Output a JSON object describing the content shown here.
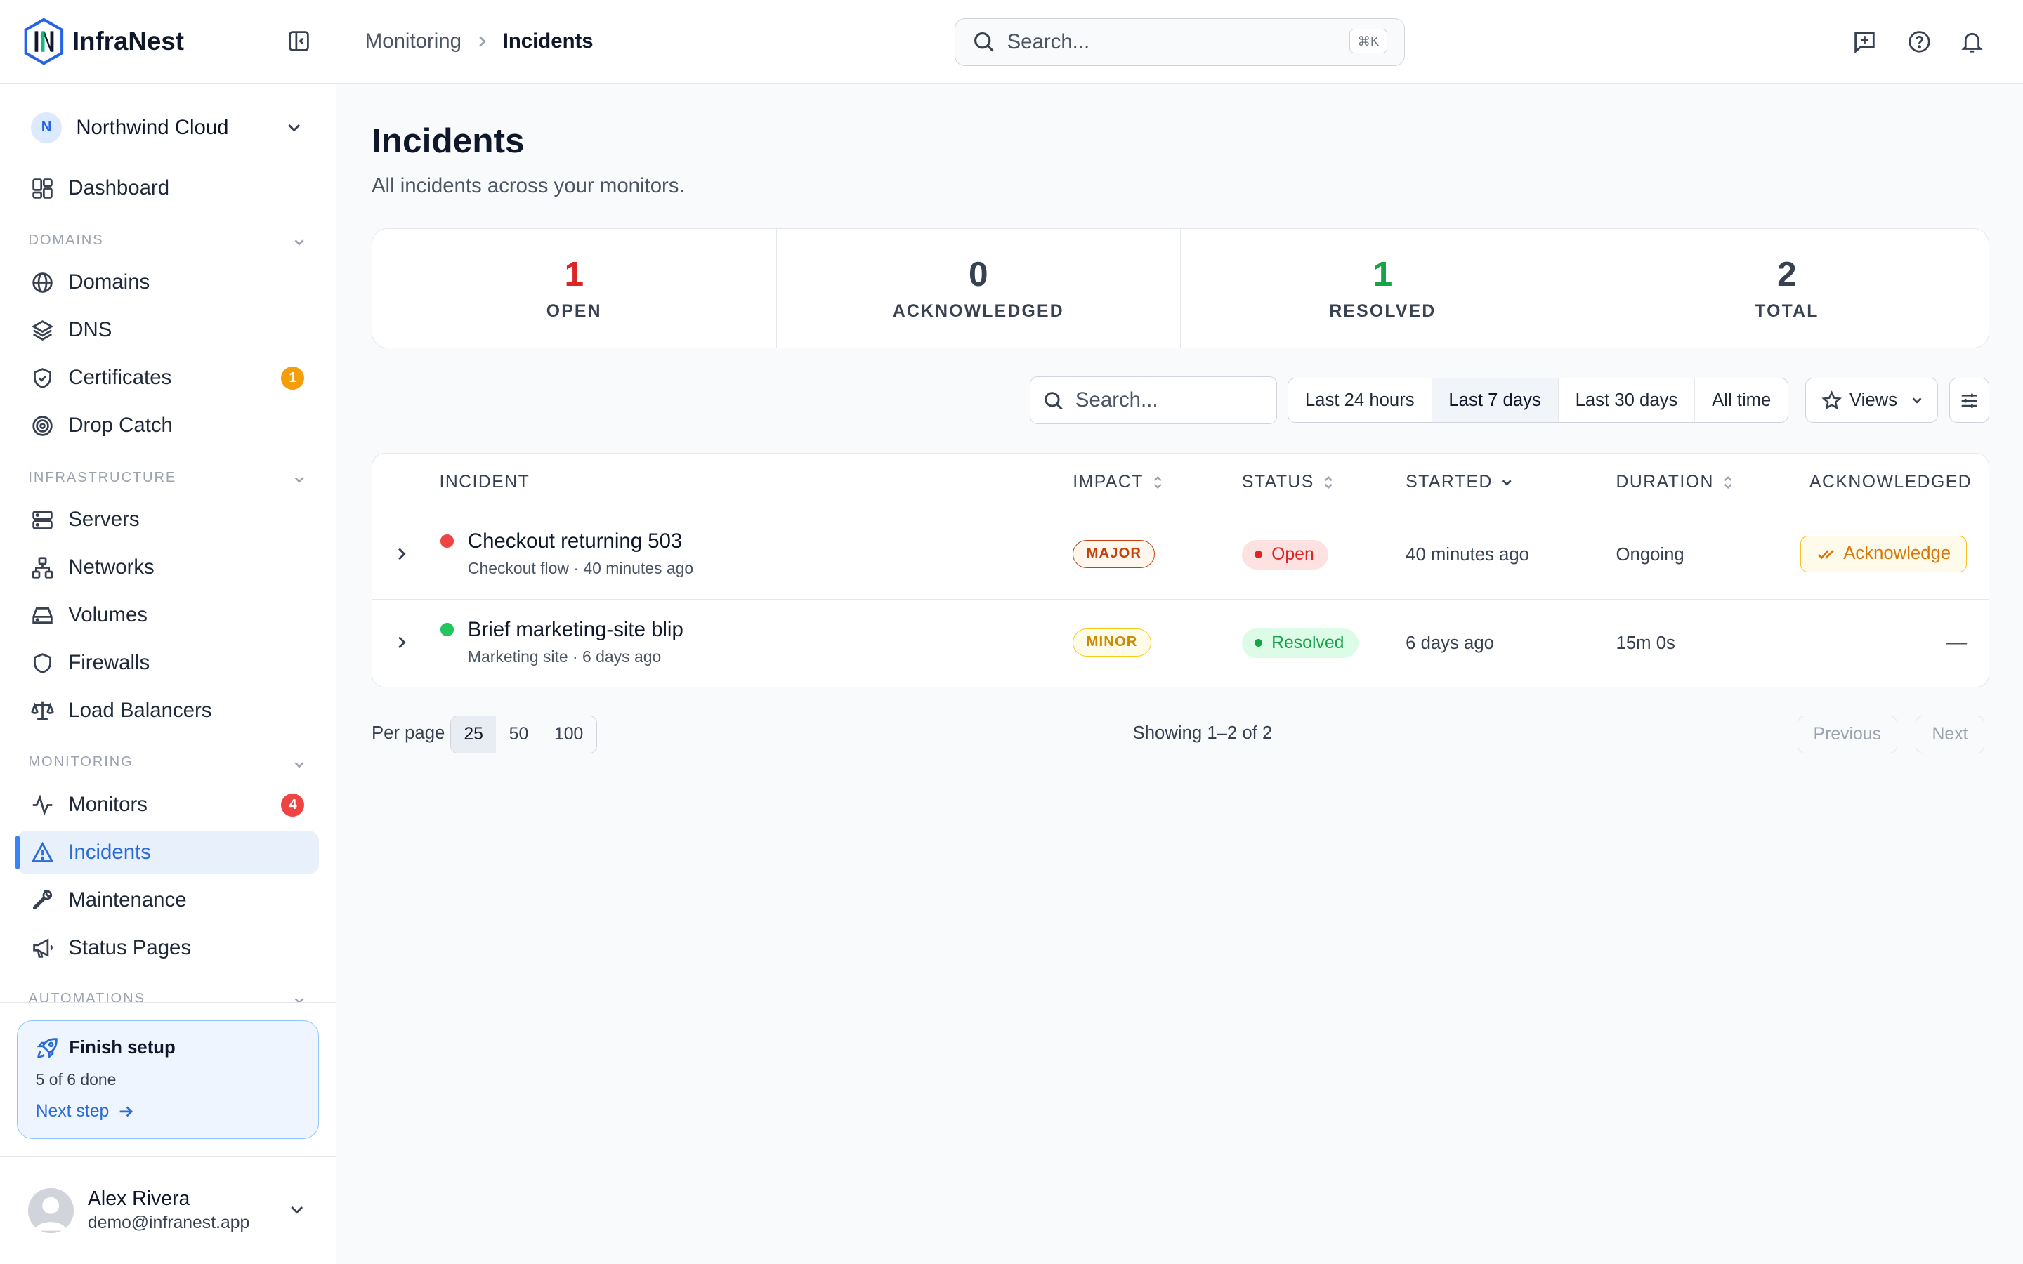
{
  "brand": {
    "name": "InfraNest"
  },
  "org": {
    "initial": "N",
    "name": "Northwind Cloud"
  },
  "nav": {
    "dashboard": "Dashboard",
    "sections": {
      "domains": "DOMAINS",
      "infrastructure": "INFRASTRUCTURE",
      "monitoring": "MONITORING",
      "automations": "AUTOMATIONS"
    },
    "domains": "Domains",
    "dns": "DNS",
    "certificates": "Certificates",
    "certificates_badge": "1",
    "drop_catch": "Drop Catch",
    "servers": "Servers",
    "networks": "Networks",
    "volumes": "Volumes",
    "firewalls": "Firewalls",
    "load_balancers": "Load Balancers",
    "monitors": "Monitors",
    "monitors_badge": "4",
    "incidents": "Incidents",
    "maintenance": "Maintenance",
    "status_pages": "Status Pages"
  },
  "setup": {
    "title": "Finish setup",
    "progress": "5 of 6 done",
    "link": "Next step"
  },
  "user": {
    "name": "Alex Rivera",
    "email": "demo@infranest.app"
  },
  "header": {
    "breadcrumb": [
      "Monitoring",
      "Incidents"
    ],
    "search_placeholder": "Search...",
    "shortcut": "⌘K"
  },
  "page": {
    "title": "Incidents",
    "subtitle": "All incidents across your monitors."
  },
  "stats": [
    {
      "value": "1",
      "label": "OPEN",
      "color": "#dc2626"
    },
    {
      "value": "0",
      "label": "ACKNOWLEDGED",
      "color": "#374151"
    },
    {
      "value": "1",
      "label": "RESOLVED",
      "color": "#16a34a"
    },
    {
      "value": "2",
      "label": "TOTAL",
      "color": "#374151"
    }
  ],
  "filters": {
    "search_placeholder": "Search...",
    "ranges": [
      "Last 24 hours",
      "Last 7 days",
      "Last 30 days",
      "All time"
    ],
    "selected_range": "Last 7 days",
    "views_label": "Views"
  },
  "table": {
    "columns": {
      "incident": "INCIDENT",
      "impact": "IMPACT",
      "status": "STATUS",
      "started": "STARTED",
      "duration": "DURATION",
      "acknowledged": "ACKNOWLEDGED"
    },
    "rows": [
      {
        "title": "Checkout returning 503",
        "meta": "Checkout flow · 40 minutes ago",
        "impact": "MAJOR",
        "status": "Open",
        "started": "40 minutes ago",
        "duration": "Ongoing",
        "ack": "Acknowledge",
        "dot_color": "#ef4444"
      },
      {
        "title": "Brief marketing-site blip",
        "meta": "Marketing site · 6 days ago",
        "impact": "MINOR",
        "status": "Resolved",
        "started": "6 days ago",
        "duration": "15m 0s",
        "ack": "—",
        "dot_color": "#22c55e"
      }
    ]
  },
  "pagination": {
    "per_page_label": "Per page",
    "options": [
      "25",
      "50",
      "100"
    ],
    "showing": "Showing 1–2 of 2",
    "previous": "Previous",
    "next": "Next"
  }
}
